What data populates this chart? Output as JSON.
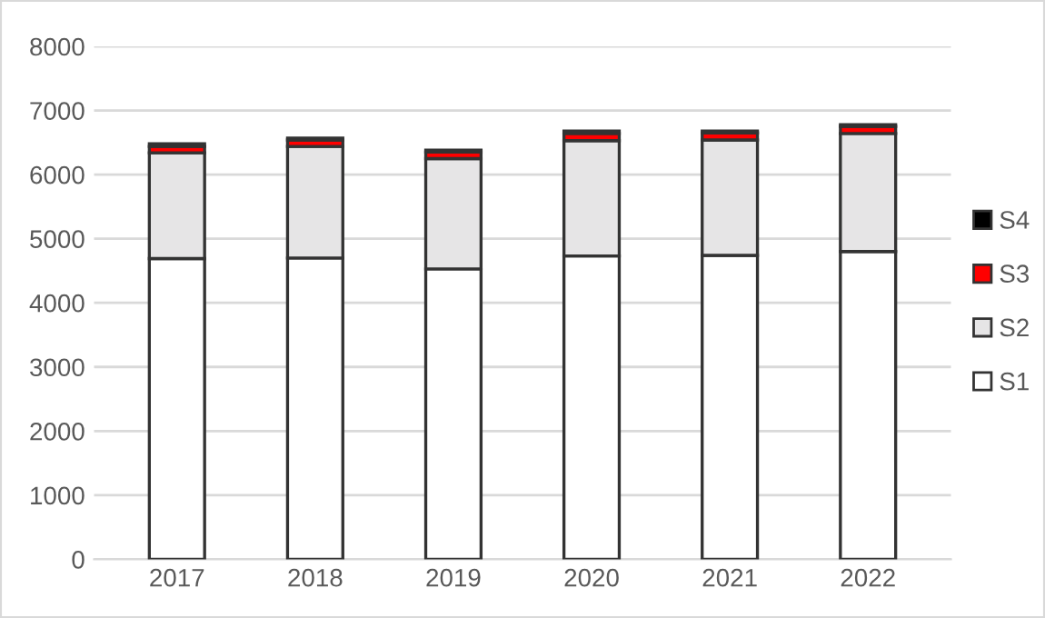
{
  "chart_data": {
    "type": "bar",
    "stacked": true,
    "categories": [
      "2017",
      "2018",
      "2019",
      "2020",
      "2021",
      "2022"
    ],
    "series": [
      {
        "name": "S1",
        "color": "#ffffff",
        "values": [
          4690,
          4700,
          4530,
          4730,
          4740,
          4800
        ]
      },
      {
        "name": "S2",
        "color": "#e6e5e6",
        "values": [
          1650,
          1740,
          1720,
          1800,
          1800,
          1840
        ]
      },
      {
        "name": "S3",
        "color": "#ff0000",
        "values": [
          100,
          100,
          100,
          110,
          110,
          110
        ]
      },
      {
        "name": "S4",
        "color": "#000000",
        "values": [
          40,
          30,
          30,
          40,
          30,
          30
        ]
      }
    ],
    "ylim": [
      0,
      8000
    ],
    "yticks": [
      0,
      1000,
      2000,
      3000,
      4000,
      5000,
      6000,
      7000,
      8000
    ],
    "grid": "y",
    "legend": "right"
  }
}
